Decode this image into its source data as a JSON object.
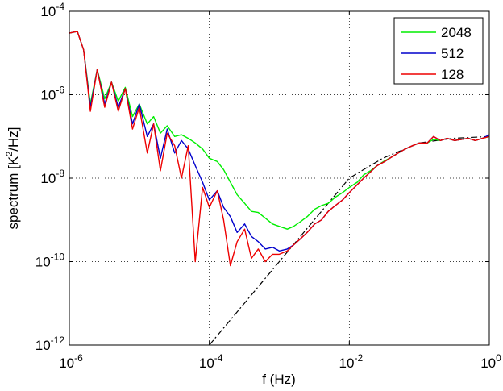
{
  "chart_data": {
    "type": "line",
    "xlabel": "f (Hz)",
    "ylabel_base": "spectrum [K",
    "ylabel_sup": "2",
    "ylabel_tail": "/Hz]",
    "x_scale": "log",
    "y_scale": "log",
    "xlim": [
      1e-06,
      1
    ],
    "ylim": [
      1e-12,
      0.0001
    ],
    "x_ticks": [
      {
        "value": 1e-06,
        "base": "10",
        "exp": "-6"
      },
      {
        "value": 0.0001,
        "base": "10",
        "exp": "-4"
      },
      {
        "value": 0.01,
        "base": "10",
        "exp": "-2"
      },
      {
        "value": 1,
        "base": "10",
        "exp": "0"
      }
    ],
    "y_ticks": [
      {
        "value": 1e-12,
        "base": "10",
        "exp": "-12"
      },
      {
        "value": 1e-10,
        "base": "10",
        "exp": "-10"
      },
      {
        "value": 1e-08,
        "base": "10",
        "exp": "-8"
      },
      {
        "value": 1e-06,
        "base": "10",
        "exp": "-6"
      },
      {
        "value": 0.0001,
        "base": "10",
        "exp": "-4"
      }
    ],
    "grid": true,
    "legend_position": "top-right",
    "series": [
      {
        "name": "2048",
        "color": "#00ee00",
        "x": [
          1e-06,
          1.3e-06,
          1.6e-06,
          2e-06,
          2.5e-06,
          3.2e-06,
          4e-06,
          5e-06,
          6.3e-06,
          8e-06,
          1e-05,
          1.3e-05,
          1.6e-05,
          2e-05,
          2.5e-05,
          3.2e-05,
          4e-05,
          5e-05,
          6.3e-05,
          8e-05,
          0.0001,
          0.00013,
          0.00016,
          0.0002,
          0.00025,
          0.00032,
          0.0004,
          0.0005,
          0.00063,
          0.0008,
          0.001,
          0.0013,
          0.0016,
          0.002,
          0.0025,
          0.0032,
          0.004,
          0.005,
          0.0063,
          0.008,
          0.01,
          0.013,
          0.016,
          0.02,
          0.025,
          0.032,
          0.04,
          0.05,
          0.063,
          0.08,
          0.1,
          0.13,
          0.16,
          0.2,
          0.25,
          0.32,
          0.4,
          0.5,
          0.63,
          0.8,
          1
        ],
        "y": [
          3e-05,
          3.3e-05,
          1.2e-05,
          6e-07,
          4e-06,
          8e-07,
          2e-06,
          7e-07,
          1.5e-06,
          3e-07,
          6e-07,
          2e-07,
          3e-07,
          1.2e-07,
          1.8e-07,
          1e-07,
          1.1e-07,
          9e-08,
          7e-08,
          5e-08,
          3e-08,
          2.5e-08,
          1.6e-08,
          8e-09,
          4e-09,
          2.5e-09,
          1.6e-09,
          1.5e-09,
          1.1e-09,
          8e-10,
          7e-10,
          6e-10,
          7e-10,
          9e-10,
          1.2e-09,
          1.8e-09,
          2.2e-09,
          2.5e-09,
          3.5e-09,
          4.5e-09,
          6e-09,
          8e-09,
          1.2e-08,
          1.5e-08,
          2e-08,
          2.6e-08,
          3.2e-08,
          4e-08,
          5e-08,
          6e-08,
          7e-08,
          7e-08,
          8.5e-08,
          8e-08,
          9e-08,
          8e-08,
          8.5e-08,
          9e-08,
          8e-08,
          9e-08,
          1e-07
        ]
      },
      {
        "name": "512",
        "color": "#0000cc",
        "x": [
          1e-06,
          1.3e-06,
          1.6e-06,
          2e-06,
          2.5e-06,
          3.2e-06,
          4e-06,
          5e-06,
          6.3e-06,
          8e-06,
          1e-05,
          1.3e-05,
          1.6e-05,
          2e-05,
          2.5e-05,
          3.2e-05,
          4e-05,
          5e-05,
          6.3e-05,
          8e-05,
          0.0001,
          0.00013,
          0.00016,
          0.0002,
          0.00025,
          0.00032,
          0.0004,
          0.0005,
          0.00063,
          0.0008,
          0.001,
          0.0013,
          0.0016,
          0.002,
          0.0025,
          0.0032,
          0.004,
          0.005,
          0.0063,
          0.008,
          0.01,
          0.013,
          0.016,
          0.02,
          0.025,
          0.032,
          0.04,
          0.05,
          0.063,
          0.08,
          0.1,
          0.13,
          0.16,
          0.2,
          0.25,
          0.32,
          0.4,
          0.5,
          0.63,
          0.8,
          1
        ],
        "y": [
          3e-05,
          3.3e-05,
          1.2e-05,
          5e-07,
          4e-06,
          6e-07,
          2e-06,
          5e-07,
          1.4e-06,
          2e-07,
          6e-07,
          1e-07,
          2e-07,
          3e-08,
          1.5e-07,
          4e-08,
          8e-08,
          5e-08,
          2e-08,
          8e-09,
          3e-09,
          5e-09,
          2e-09,
          1.2e-09,
          5e-10,
          8e-10,
          4e-10,
          3e-10,
          2e-10,
          2.2e-10,
          1.8e-10,
          2e-10,
          2.5e-10,
          3.5e-10,
          5e-10,
          8e-10,
          1e-09,
          1.6e-09,
          2.2e-09,
          3e-09,
          4.5e-09,
          7e-09,
          1e-08,
          1.4e-08,
          2e-08,
          2.5e-08,
          3.2e-08,
          4e-08,
          5e-08,
          6e-08,
          7e-08,
          7e-08,
          1e-07,
          8e-08,
          9e-08,
          8e-08,
          8.5e-08,
          9e-08,
          8e-08,
          9e-08,
          1.1e-07
        ]
      },
      {
        "name": "128",
        "color": "#ee0000",
        "x": [
          1e-06,
          1.3e-06,
          1.6e-06,
          2e-06,
          2.5e-06,
          3.2e-06,
          4e-06,
          5e-06,
          6.3e-06,
          8e-06,
          1e-05,
          1.3e-05,
          1.6e-05,
          2e-05,
          2.5e-05,
          3.2e-05,
          4e-05,
          5e-05,
          6.3e-05,
          8e-05,
          0.0001,
          0.00013,
          0.00016,
          0.0002,
          0.00025,
          0.00032,
          0.0004,
          0.0005,
          0.00063,
          0.0008,
          0.001,
          0.0013,
          0.0016,
          0.002,
          0.0025,
          0.0032,
          0.004,
          0.005,
          0.0063,
          0.008,
          0.01,
          0.013,
          0.016,
          0.02,
          0.025,
          0.032,
          0.04,
          0.05,
          0.063,
          0.08,
          0.1,
          0.13,
          0.16,
          0.2,
          0.25,
          0.32,
          0.4,
          0.5,
          0.63,
          0.8,
          1
        ],
        "y": [
          3e-05,
          3.3e-05,
          1.2e-05,
          4e-07,
          4e-06,
          5e-07,
          2e-06,
          4e-07,
          1.4e-06,
          1.5e-07,
          5e-07,
          4e-08,
          2e-07,
          1.5e-08,
          1.2e-07,
          6e-08,
          1e-08,
          6e-08,
          1e-10,
          6e-09,
          2e-09,
          5e-09,
          1e-09,
          8e-11,
          3e-10,
          6e-10,
          1.2e-10,
          2e-10,
          1e-10,
          1.5e-10,
          1.5e-10,
          1.8e-10,
          2.5e-10,
          3.5e-10,
          5e-10,
          8e-10,
          1e-09,
          1.6e-09,
          2.2e-09,
          3e-09,
          4.5e-09,
          7e-09,
          1e-08,
          1.4e-08,
          2e-08,
          2.5e-08,
          3.2e-08,
          4e-08,
          5e-08,
          6e-08,
          7e-08,
          7e-08,
          1e-07,
          8e-08,
          9e-08,
          8e-08,
          8.5e-08,
          9e-08,
          8e-08,
          9e-08,
          1e-07
        ]
      }
    ],
    "reference_line": {
      "style": "dash-dot",
      "color": "#000000",
      "x": [
        0.0001,
        0.001,
        0.01,
        0.03,
        0.1,
        0.3,
        1
      ],
      "y": [
        1e-12,
        1e-10,
        1e-08,
        3e-08,
        7e-08,
        9e-08,
        1e-07
      ]
    }
  }
}
